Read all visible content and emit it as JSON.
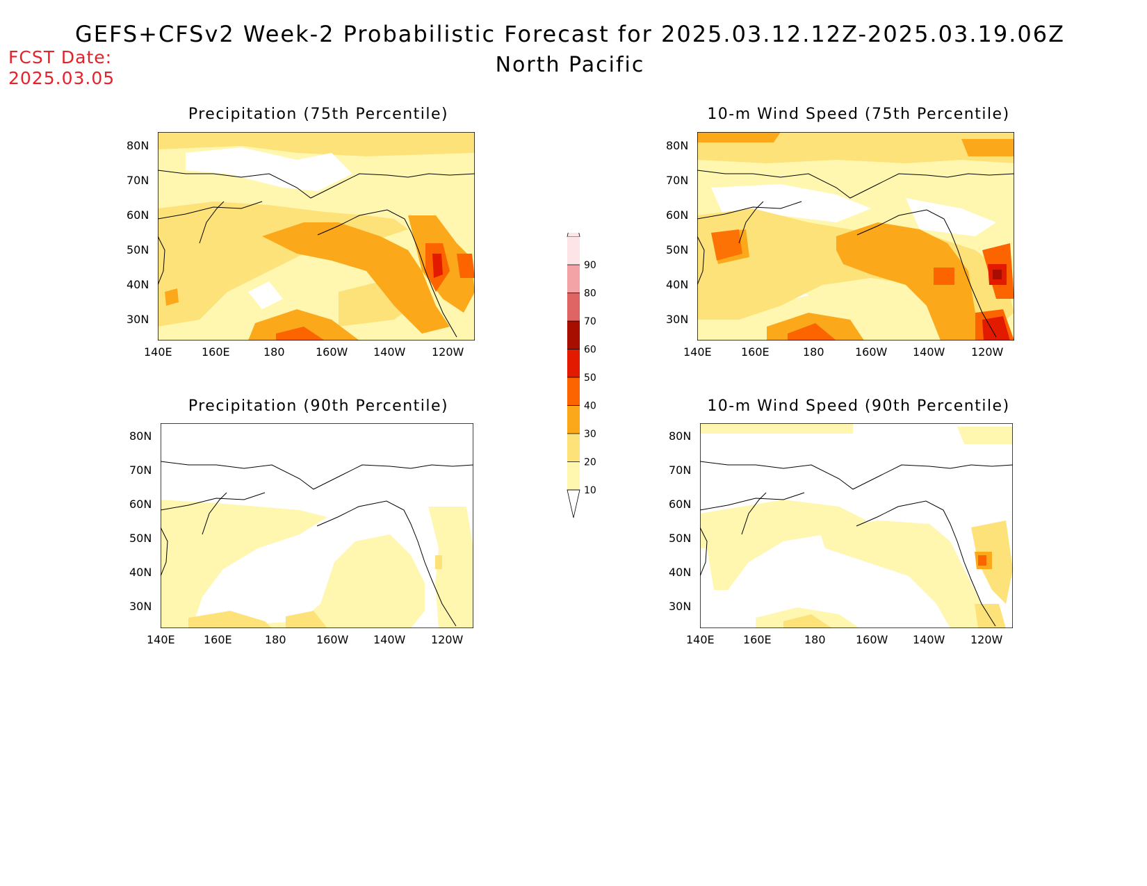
{
  "header": {
    "title": "GEFS+CFSv2 Week-2 Probabilistic Forecast for 2025.03.12.12Z-2025.03.19.06Z",
    "subtitle": "North Pacific",
    "fcst_label": "FCST Date:",
    "fcst_value": "2025.03.05"
  },
  "panels": [
    {
      "id": "precip-75",
      "title": "Precipitation (75th Percentile)"
    },
    {
      "id": "wind-75",
      "title": "10-m Wind Speed (75th Percentile)"
    },
    {
      "id": "precip-90",
      "title": "Precipitation (90th Percentile)"
    },
    {
      "id": "wind-90",
      "title": "10-m Wind Speed (90th Percentile)"
    }
  ],
  "axes": {
    "lat_labels": [
      "80N",
      "70N",
      "60N",
      "50N",
      "40N",
      "30N"
    ],
    "lon_labels": [
      "140E",
      "160E",
      "180",
      "160W",
      "140W",
      "120W"
    ]
  },
  "colorbar": {
    "levels": [
      "10",
      "20",
      "30",
      "40",
      "50",
      "60",
      "70",
      "80",
      "90"
    ],
    "colors": [
      "#fff7b0",
      "#fde27a",
      "#fba81a",
      "#fc6400",
      "#e21b00",
      "#a70e00",
      "#df6464",
      "#f3a2a5",
      "#fde4e6"
    ]
  }
}
